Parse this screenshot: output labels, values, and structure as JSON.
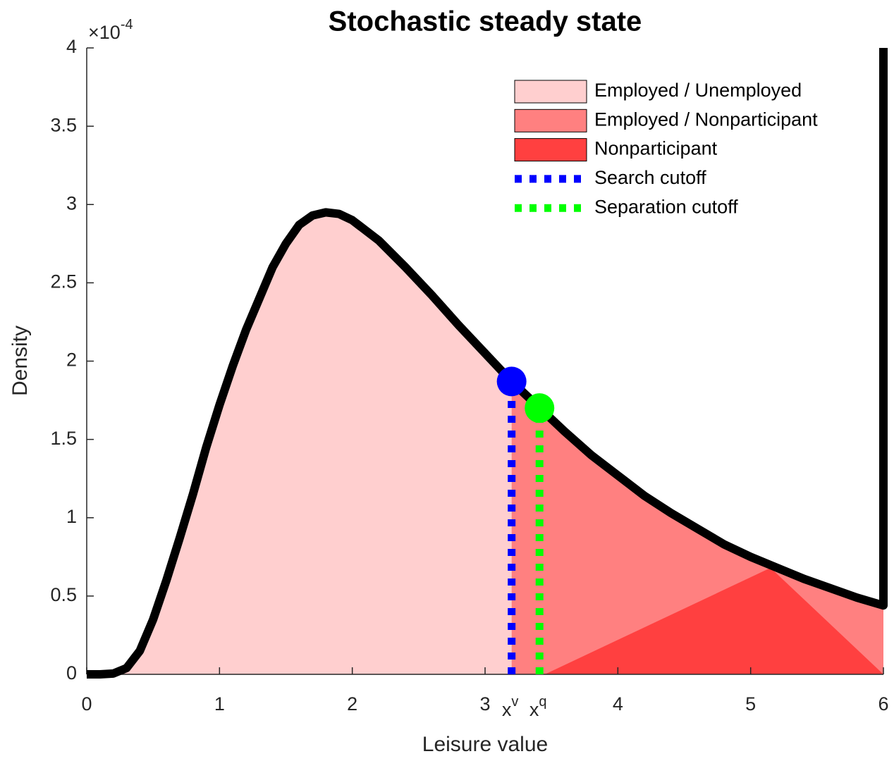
{
  "chart_data": {
    "type": "area",
    "title": "Stochastic steady state",
    "xlabel": "Leisure value",
    "ylabel": "Density",
    "y_multiplier": {
      "base": "×10",
      "exponent": "-4"
    },
    "xlim": [
      0,
      6
    ],
    "ylim": [
      0,
      4
    ],
    "xticks": [
      0,
      1,
      2,
      3,
      4,
      5,
      6
    ],
    "yticks": [
      0,
      0.5,
      1,
      1.5,
      2,
      2.5,
      3,
      3.5,
      4
    ],
    "legend_position": "northeast",
    "series": [
      {
        "name": "Employed / Unemployed",
        "color": "#ffcfcf",
        "x": [
          0,
          0.1,
          0.2,
          0.3,
          0.4,
          0.5,
          0.6,
          0.7,
          0.8,
          0.9,
          1.0,
          1.1,
          1.2,
          1.3,
          1.4,
          1.5,
          1.6,
          1.7,
          1.8,
          1.9,
          2.0,
          2.2,
          2.4,
          2.6,
          2.8,
          3.0,
          3.2
        ],
        "values": [
          0,
          0,
          0.005,
          0.04,
          0.15,
          0.35,
          0.6,
          0.87,
          1.15,
          1.45,
          1.72,
          1.97,
          2.2,
          2.4,
          2.6,
          2.75,
          2.87,
          2.93,
          2.95,
          2.94,
          2.9,
          2.77,
          2.6,
          2.42,
          2.23,
          2.05,
          1.87
        ]
      },
      {
        "name": "Employed / Nonparticipant",
        "color": "#ff8080",
        "x": [
          3.2,
          3.4,
          3.6,
          3.8,
          4.0,
          4.2,
          4.4,
          4.6,
          4.8,
          5.0,
          5.2,
          5.4,
          5.6,
          5.8,
          6.0
        ],
        "values": [
          1.87,
          1.71,
          1.55,
          1.4,
          1.27,
          1.14,
          1.03,
          0.93,
          0.83,
          0.75,
          0.68,
          0.61,
          0.55,
          0.49,
          0.44
        ]
      },
      {
        "name": "Nonparticipant",
        "color": "#ff4040",
        "x": [
          3.45,
          5.15,
          6.0
        ],
        "values": [
          0,
          0.68,
          0
        ]
      }
    ],
    "line": {
      "color": "#000000",
      "x": [
        0,
        0.1,
        0.2,
        0.3,
        0.4,
        0.5,
        0.6,
        0.7,
        0.8,
        0.9,
        1.0,
        1.1,
        1.2,
        1.3,
        1.4,
        1.5,
        1.6,
        1.7,
        1.8,
        1.9,
        2.0,
        2.2,
        2.4,
        2.6,
        2.8,
        3.0,
        3.2,
        3.4,
        3.6,
        3.8,
        4.0,
        4.2,
        4.4,
        4.6,
        4.8,
        5.0,
        5.2,
        5.4,
        5.6,
        5.8,
        6.0,
        6.0
      ],
      "values": [
        0,
        0,
        0.005,
        0.04,
        0.15,
        0.35,
        0.6,
        0.87,
        1.15,
        1.45,
        1.72,
        1.97,
        2.2,
        2.4,
        2.6,
        2.75,
        2.87,
        2.93,
        2.95,
        2.94,
        2.9,
        2.77,
        2.6,
        2.42,
        2.23,
        2.05,
        1.87,
        1.71,
        1.55,
        1.4,
        1.27,
        1.14,
        1.03,
        0.93,
        0.83,
        0.75,
        0.68,
        0.61,
        0.55,
        0.49,
        0.44,
        4
      ]
    },
    "cutoffs": [
      {
        "name": "Search cutoff",
        "color": "#0000ff",
        "x": 3.2,
        "value": 1.87,
        "tick_label": "x",
        "tick_sup": "v"
      },
      {
        "name": "Separation cutoff",
        "color": "#00ff00",
        "x": 3.41,
        "value": 1.7,
        "tick_label": "x",
        "tick_sup": "q"
      }
    ]
  }
}
